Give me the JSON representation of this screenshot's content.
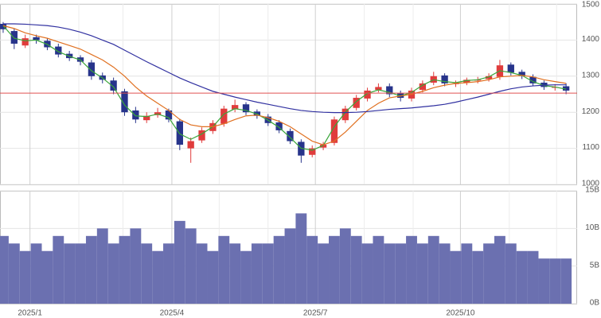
{
  "chart_data": [
    {
      "type": "candlestick",
      "x": [
        -17,
        -10,
        -3,
        4,
        11,
        18,
        25,
        32,
        39,
        46,
        53,
        60,
        67,
        74,
        81,
        88,
        95,
        102,
        109,
        116,
        123,
        130,
        137,
        144,
        151,
        158,
        165,
        172,
        179,
        186,
        193,
        200,
        207,
        214,
        221,
        228,
        235,
        242,
        249,
        256,
        263,
        270,
        277,
        284,
        291,
        298,
        305,
        312,
        319,
        326,
        333,
        340
      ],
      "open": [
        1445,
        1425,
        1385,
        1408,
        1398,
        1382,
        1362,
        1352,
        1338,
        1302,
        1288,
        1258,
        1205,
        1178,
        1192,
        1205,
        1175,
        1100,
        1122,
        1148,
        1168,
        1208,
        1222,
        1202,
        1188,
        1172,
        1148,
        1118,
        1082,
        1102,
        1115,
        1178,
        1212,
        1238,
        1262,
        1272,
        1252,
        1238,
        1262,
        1282,
        1302,
        1278,
        1282,
        1288,
        1292,
        1298,
        1332,
        1312,
        1298,
        1282,
        1268,
        1272
      ],
      "high": [
        1450,
        1432,
        1415,
        1415,
        1405,
        1390,
        1370,
        1358,
        1345,
        1310,
        1296,
        1265,
        1215,
        1200,
        1212,
        1210,
        1182,
        1130,
        1158,
        1178,
        1218,
        1235,
        1228,
        1208,
        1195,
        1178,
        1155,
        1125,
        1108,
        1118,
        1188,
        1218,
        1248,
        1268,
        1280,
        1280,
        1260,
        1268,
        1288,
        1312,
        1308,
        1288,
        1296,
        1298,
        1308,
        1345,
        1338,
        1318,
        1305,
        1288,
        1278,
        1280
      ],
      "low": [
        1420,
        1375,
        1378,
        1390,
        1372,
        1352,
        1342,
        1330,
        1290,
        1280,
        1250,
        1190,
        1170,
        1170,
        1185,
        1172,
        1095,
        1060,
        1115,
        1140,
        1160,
        1200,
        1192,
        1182,
        1162,
        1142,
        1112,
        1060,
        1075,
        1095,
        1108,
        1170,
        1205,
        1230,
        1255,
        1242,
        1230,
        1230,
        1255,
        1275,
        1272,
        1270,
        1275,
        1280,
        1285,
        1290,
        1302,
        1292,
        1272,
        1262,
        1260,
        1250
      ],
      "close": [
        1430,
        1390,
        1405,
        1400,
        1380,
        1360,
        1350,
        1340,
        1300,
        1290,
        1260,
        1200,
        1180,
        1190,
        1200,
        1180,
        1110,
        1120,
        1150,
        1170,
        1210,
        1220,
        1200,
        1190,
        1170,
        1150,
        1120,
        1080,
        1100,
        1110,
        1180,
        1210,
        1240,
        1260,
        1270,
        1250,
        1240,
        1260,
        1280,
        1300,
        1280,
        1280,
        1290,
        1290,
        1300,
        1330,
        1310,
        1300,
        1280,
        1270,
        1270,
        1260
      ],
      "up_color": "#e03c3c",
      "down_color": "#27348b",
      "lines": [
        {
          "color": "#3aa53a",
          "values": [
            1440,
            1405,
            1398,
            1400,
            1388,
            1368,
            1355,
            1345,
            1315,
            1295,
            1270,
            1220,
            1190,
            1188,
            1195,
            1185,
            1140,
            1125,
            1140,
            1160,
            1195,
            1210,
            1205,
            1195,
            1178,
            1158,
            1130,
            1100,
            1095,
            1108,
            1160,
            1200,
            1230,
            1252,
            1262,
            1255,
            1245,
            1255,
            1275,
            1290,
            1285,
            1282,
            1288,
            1290,
            1298,
            1315,
            1310,
            1302,
            1285,
            1274,
            1270,
            1264
          ]
        },
        {
          "color": "#e07020",
          "values": [
            1440,
            1432,
            1420,
            1412,
            1405,
            1395,
            1385,
            1375,
            1360,
            1345,
            1325,
            1300,
            1270,
            1245,
            1225,
            1205,
            1180,
            1165,
            1160,
            1160,
            1168,
            1180,
            1190,
            1192,
            1185,
            1175,
            1160,
            1140,
            1120,
            1110,
            1120,
            1145,
            1175,
            1205,
            1225,
            1240,
            1245,
            1250,
            1258,
            1268,
            1275,
            1280,
            1282,
            1285,
            1290,
            1298,
            1300,
            1302,
            1298,
            1290,
            1285,
            1280
          ]
        },
        {
          "color": "#3030a0",
          "values": [
            1445,
            1445,
            1444,
            1442,
            1440,
            1436,
            1430,
            1422,
            1412,
            1400,
            1388,
            1372,
            1356,
            1340,
            1325,
            1310,
            1295,
            1282,
            1270,
            1258,
            1250,
            1242,
            1235,
            1228,
            1222,
            1216,
            1210,
            1205,
            1202,
            1200,
            1199,
            1199,
            1200,
            1202,
            1205,
            1208,
            1210,
            1212,
            1215,
            1218,
            1222,
            1228,
            1235,
            1242,
            1250,
            1258,
            1265,
            1270,
            1273,
            1275,
            1276,
            1276
          ]
        }
      ],
      "reference_line": 1253,
      "reference_color": "#e05050",
      "xlim": [
        -19,
        347
      ],
      "xticks": [
        {
          "value": 0,
          "label": "2025/1"
        },
        {
          "value": 90,
          "label": "2025/4"
        },
        {
          "value": 181,
          "label": "2025/7"
        },
        {
          "value": 273,
          "label": "2025/10"
        }
      ],
      "x_minor_ticks": [
        31,
        59,
        120,
        151,
        212,
        243,
        304,
        334
      ],
      "ylim": [
        1000,
        1500
      ],
      "yticks": [
        1000,
        1100,
        1200,
        1300,
        1400,
        1500
      ],
      "grid": true
    },
    {
      "type": "bar",
      "x": [
        -17,
        -10,
        -3,
        4,
        11,
        18,
        25,
        32,
        39,
        46,
        53,
        60,
        67,
        74,
        81,
        88,
        95,
        102,
        109,
        116,
        123,
        130,
        137,
        144,
        151,
        158,
        165,
        172,
        179,
        186,
        193,
        200,
        207,
        214,
        221,
        228,
        235,
        242,
        249,
        256,
        263,
        270,
        277,
        284,
        291,
        298,
        305,
        312,
        319,
        326,
        333,
        340
      ],
      "values": [
        9,
        8,
        7,
        8,
        7,
        9,
        8,
        8,
        9,
        10,
        8,
        9,
        10,
        8,
        7,
        8,
        11,
        10,
        8,
        7,
        9,
        8,
        7,
        8,
        8,
        9,
        10,
        12,
        9,
        8,
        9,
        10,
        9,
        8,
        9,
        8,
        8,
        9,
        8,
        9,
        8,
        7,
        8,
        7,
        8,
        9,
        8,
        7,
        7,
        6,
        6,
        6
      ],
      "color": "#6b70b0",
      "xlim": [
        -19,
        347
      ],
      "ylim": [
        0,
        15
      ],
      "yticks": [
        {
          "value": 0,
          "label": "0B"
        },
        {
          "value": 5,
          "label": "5B"
        },
        {
          "value": 10,
          "label": "10B"
        },
        {
          "value": 15,
          "label": "15B"
        }
      ],
      "grid": true
    }
  ]
}
